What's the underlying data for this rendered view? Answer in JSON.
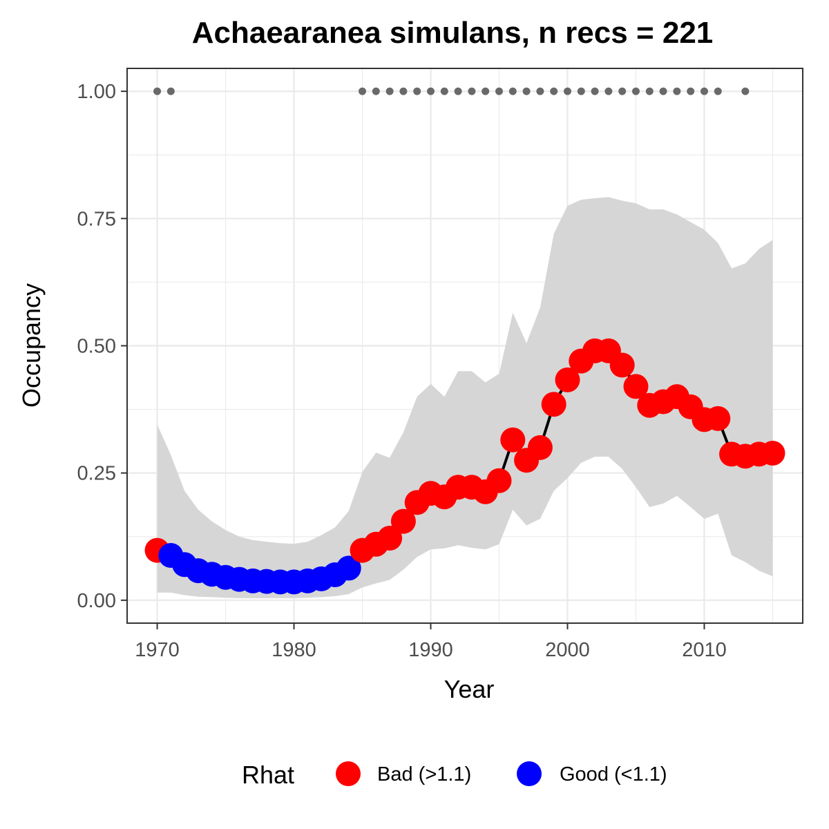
{
  "chart_data": {
    "type": "line",
    "title": "Achaearanea simulans, n recs = 221",
    "xlabel": "Year",
    "ylabel": "Occupancy",
    "xlim": [
      1967.8,
      2017.2
    ],
    "ylim": [
      -0.045,
      1.045
    ],
    "x_ticks": [
      1970,
      1980,
      1990,
      2000,
      2010
    ],
    "x_tick_labels": [
      "1970",
      "1980",
      "1990",
      "2000",
      "2010"
    ],
    "y_ticks": [
      0,
      0.25,
      0.5,
      0.75,
      1.0
    ],
    "y_tick_labels": [
      "0.00",
      "0.25",
      "0.50",
      "0.75",
      "1.00"
    ],
    "grid": true,
    "legend_position": "bottom",
    "legend_title": "Rhat",
    "legend": [
      {
        "label": "Bad (>1.1)",
        "color": "#ff0000"
      },
      {
        "label": "Good (<1.1)",
        "color": "#0000ff"
      }
    ],
    "colors": {
      "bad": "#ff0000",
      "good": "#0000ff",
      "line": "#000000",
      "ribbon": "#d6d6d6",
      "record_dots": "#696969",
      "panel_border": "#333333",
      "grid": "#ebebeb"
    },
    "years": [
      1970,
      1971,
      1972,
      1973,
      1974,
      1975,
      1976,
      1977,
      1978,
      1979,
      1980,
      1981,
      1982,
      1983,
      1984,
      1985,
      1986,
      1987,
      1988,
      1989,
      1990,
      1991,
      1992,
      1993,
      1994,
      1995,
      1996,
      1997,
      1998,
      1999,
      2000,
      2001,
      2002,
      2003,
      2004,
      2005,
      2006,
      2007,
      2008,
      2009,
      2010,
      2011,
      2012,
      2013,
      2014,
      2015
    ],
    "occupancy": [
      0.098,
      0.088,
      0.07,
      0.058,
      0.051,
      0.045,
      0.041,
      0.038,
      0.037,
      0.036,
      0.036,
      0.038,
      0.042,
      0.05,
      0.063,
      0.098,
      0.11,
      0.122,
      0.155,
      0.192,
      0.21,
      0.203,
      0.222,
      0.222,
      0.213,
      0.235,
      0.315,
      0.275,
      0.3,
      0.385,
      0.433,
      0.47,
      0.49,
      0.49,
      0.462,
      0.42,
      0.383,
      0.39,
      0.4,
      0.38,
      0.355,
      0.357,
      0.287,
      0.283,
      0.287,
      0.289
    ],
    "rhat_status": [
      "Bad",
      "Good",
      "Good",
      "Good",
      "Good",
      "Good",
      "Good",
      "Good",
      "Good",
      "Good",
      "Good",
      "Good",
      "Good",
      "Good",
      "Good",
      "Bad",
      "Bad",
      "Bad",
      "Bad",
      "Bad",
      "Bad",
      "Bad",
      "Bad",
      "Bad",
      "Bad",
      "Bad",
      "Bad",
      "Bad",
      "Bad",
      "Bad",
      "Bad",
      "Bad",
      "Bad",
      "Bad",
      "Bad",
      "Bad",
      "Bad",
      "Bad",
      "Bad",
      "Bad",
      "Bad",
      "Bad",
      "Bad",
      "Bad",
      "Bad",
      "Bad"
    ],
    "ci_upper": [
      0.345,
      0.285,
      0.215,
      0.178,
      0.155,
      0.138,
      0.125,
      0.118,
      0.115,
      0.112,
      0.111,
      0.115,
      0.128,
      0.143,
      0.175,
      0.252,
      0.29,
      0.28,
      0.33,
      0.4,
      0.425,
      0.4,
      0.45,
      0.45,
      0.428,
      0.445,
      0.565,
      0.505,
      0.575,
      0.72,
      0.775,
      0.787,
      0.79,
      0.792,
      0.785,
      0.78,
      0.768,
      0.768,
      0.758,
      0.743,
      0.728,
      0.702,
      0.652,
      0.662,
      0.69,
      0.708
    ],
    "ci_lower": [
      0.015,
      0.015,
      0.01,
      0.007,
      0.006,
      0.005,
      0.004,
      0.004,
      0.004,
      0.004,
      0.004,
      0.005,
      0.006,
      0.008,
      0.012,
      0.025,
      0.033,
      0.04,
      0.06,
      0.085,
      0.1,
      0.102,
      0.108,
      0.103,
      0.1,
      0.11,
      0.178,
      0.147,
      0.16,
      0.215,
      0.24,
      0.27,
      0.282,
      0.282,
      0.258,
      0.222,
      0.183,
      0.19,
      0.205,
      0.183,
      0.16,
      0.17,
      0.088,
      0.075,
      0.058,
      0.047
    ],
    "record_years": [
      1970,
      1971,
      1985,
      1986,
      1987,
      1988,
      1989,
      1990,
      1991,
      1992,
      1993,
      1994,
      1995,
      1996,
      1997,
      1998,
      1999,
      2000,
      2001,
      2002,
      2003,
      2004,
      2005,
      2006,
      2007,
      2008,
      2009,
      2010,
      2011,
      2013
    ],
    "record_value": 1.0
  }
}
